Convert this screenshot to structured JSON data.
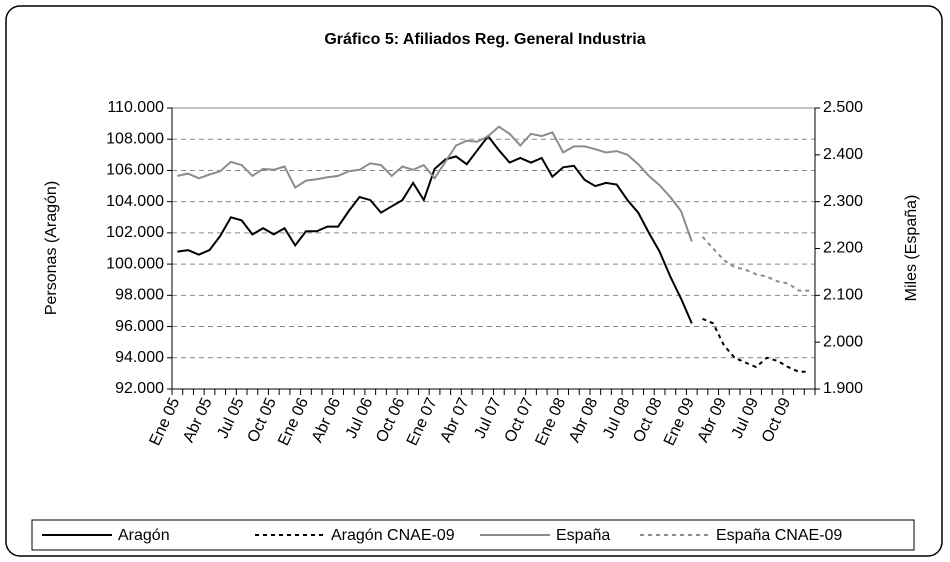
{
  "chart_data": {
    "type": "line",
    "title": "Gráfico 5: Afiliados Reg. General Industria",
    "y_label": "Personas (Aragón)",
    "y2_label": "Miles (España)",
    "categories": [
      "Ene 05",
      null,
      null,
      "Abr 05",
      null,
      null,
      "Jul 05",
      null,
      null,
      "Oct 05",
      null,
      null,
      "Ene 06",
      null,
      null,
      "Abr 06",
      null,
      null,
      "Jul 06",
      null,
      null,
      "Oct 06",
      null,
      null,
      "Ene 07",
      null,
      null,
      "Abr 07",
      null,
      null,
      "Jul 07",
      null,
      null,
      "Oct 07",
      null,
      null,
      "Ene 08",
      null,
      null,
      "Abr 08",
      null,
      null,
      "Jul 08",
      null,
      null,
      "Oct 08",
      null,
      null,
      "Ene 09",
      null,
      null,
      "Abr 09",
      null,
      null,
      "Jul 09",
      null,
      null,
      "Oct 09",
      null,
      null
    ],
    "series": [
      {
        "name": "Aragón",
        "color": "#000000",
        "line_style": "solid",
        "axis": "y",
        "values": [
          100800,
          100900,
          100600,
          100900,
          101800,
          103000,
          102800,
          101900,
          102300,
          101900,
          102300,
          101200,
          102100,
          102100,
          102400,
          102400,
          103400,
          104300,
          104100,
          103300,
          103700,
          104100,
          105200,
          104100,
          106100,
          106700,
          106900,
          106400,
          107300,
          108200,
          107300,
          106500,
          106800,
          106500,
          106800,
          105600,
          106200,
          106300,
          105400,
          105000,
          105200,
          105100,
          104100,
          103300,
          102000,
          100800,
          99200,
          97800,
          96200,
          null,
          null,
          null,
          null,
          null,
          null,
          null,
          null,
          null,
          null,
          null
        ]
      },
      {
        "name": "Aragón CNAE-09",
        "color": "#000000",
        "line_style": "dashed",
        "axis": "y",
        "values": [
          null,
          null,
          null,
          null,
          null,
          null,
          null,
          null,
          null,
          null,
          null,
          null,
          null,
          null,
          null,
          null,
          null,
          null,
          null,
          null,
          null,
          null,
          null,
          null,
          null,
          null,
          null,
          null,
          null,
          null,
          null,
          null,
          null,
          null,
          null,
          null,
          null,
          null,
          null,
          null,
          null,
          null,
          null,
          null,
          null,
          null,
          null,
          null,
          null,
          96500,
          96200,
          94800,
          94000,
          93700,
          93400,
          94000,
          93800,
          93400,
          93100,
          93100
        ]
      },
      {
        "name": "España",
        "color": "#8c8c8c",
        "line_style": "solid",
        "axis": "y2",
        "values": [
          2355,
          2360,
          2350,
          2358,
          2365,
          2385,
          2378,
          2355,
          2370,
          2368,
          2375,
          2330,
          2345,
          2348,
          2352,
          2355,
          2365,
          2368,
          2382,
          2378,
          2355,
          2375,
          2368,
          2378,
          2350,
          2385,
          2420,
          2430,
          2428,
          2440,
          2460,
          2445,
          2420,
          2445,
          2440,
          2448,
          2405,
          2418,
          2418,
          2412,
          2405,
          2408,
          2400,
          2380,
          2355,
          2335,
          2310,
          2280,
          2215,
          null,
          null,
          null,
          null,
          null,
          null,
          null,
          null,
          null,
          null,
          null
        ]
      },
      {
        "name": "España CNAE-09",
        "color": "#8c8c8c",
        "line_style": "dashed",
        "axis": "y2",
        "values": [
          null,
          null,
          null,
          null,
          null,
          null,
          null,
          null,
          null,
          null,
          null,
          null,
          null,
          null,
          null,
          null,
          null,
          null,
          null,
          null,
          null,
          null,
          null,
          null,
          null,
          null,
          null,
          null,
          null,
          null,
          null,
          null,
          null,
          null,
          null,
          null,
          null,
          null,
          null,
          null,
          null,
          null,
          null,
          null,
          null,
          null,
          null,
          null,
          null,
          2225,
          2200,
          2175,
          2160,
          2155,
          2145,
          2140,
          2130,
          2125,
          2110,
          2110
        ]
      }
    ],
    "ylim": [
      92000,
      110000
    ],
    "yticks": [
      {
        "value": 92000,
        "label": "92.000"
      },
      {
        "value": 94000,
        "label": "94.000"
      },
      {
        "value": 96000,
        "label": "96.000"
      },
      {
        "value": 98000,
        "label": "98.000"
      },
      {
        "value": 100000,
        "label": "100.000"
      },
      {
        "value": 102000,
        "label": "102.000"
      },
      {
        "value": 104000,
        "label": "104.000"
      },
      {
        "value": 106000,
        "label": "106.000"
      },
      {
        "value": 108000,
        "label": "108.000"
      },
      {
        "value": 110000,
        "label": "110.000"
      }
    ],
    "y2lim": [
      1900,
      2500
    ],
    "y2ticks": [
      {
        "value": 1900,
        "label": "1.900"
      },
      {
        "value": 2000,
        "label": "2.000"
      },
      {
        "value": 2100,
        "label": "2.100"
      },
      {
        "value": 2200,
        "label": "2.200"
      },
      {
        "value": 2300,
        "label": "2.300"
      },
      {
        "value": 2400,
        "label": "2.400"
      },
      {
        "value": 2500,
        "label": "2.500"
      }
    ],
    "grid": true,
    "legend": "bottom"
  }
}
